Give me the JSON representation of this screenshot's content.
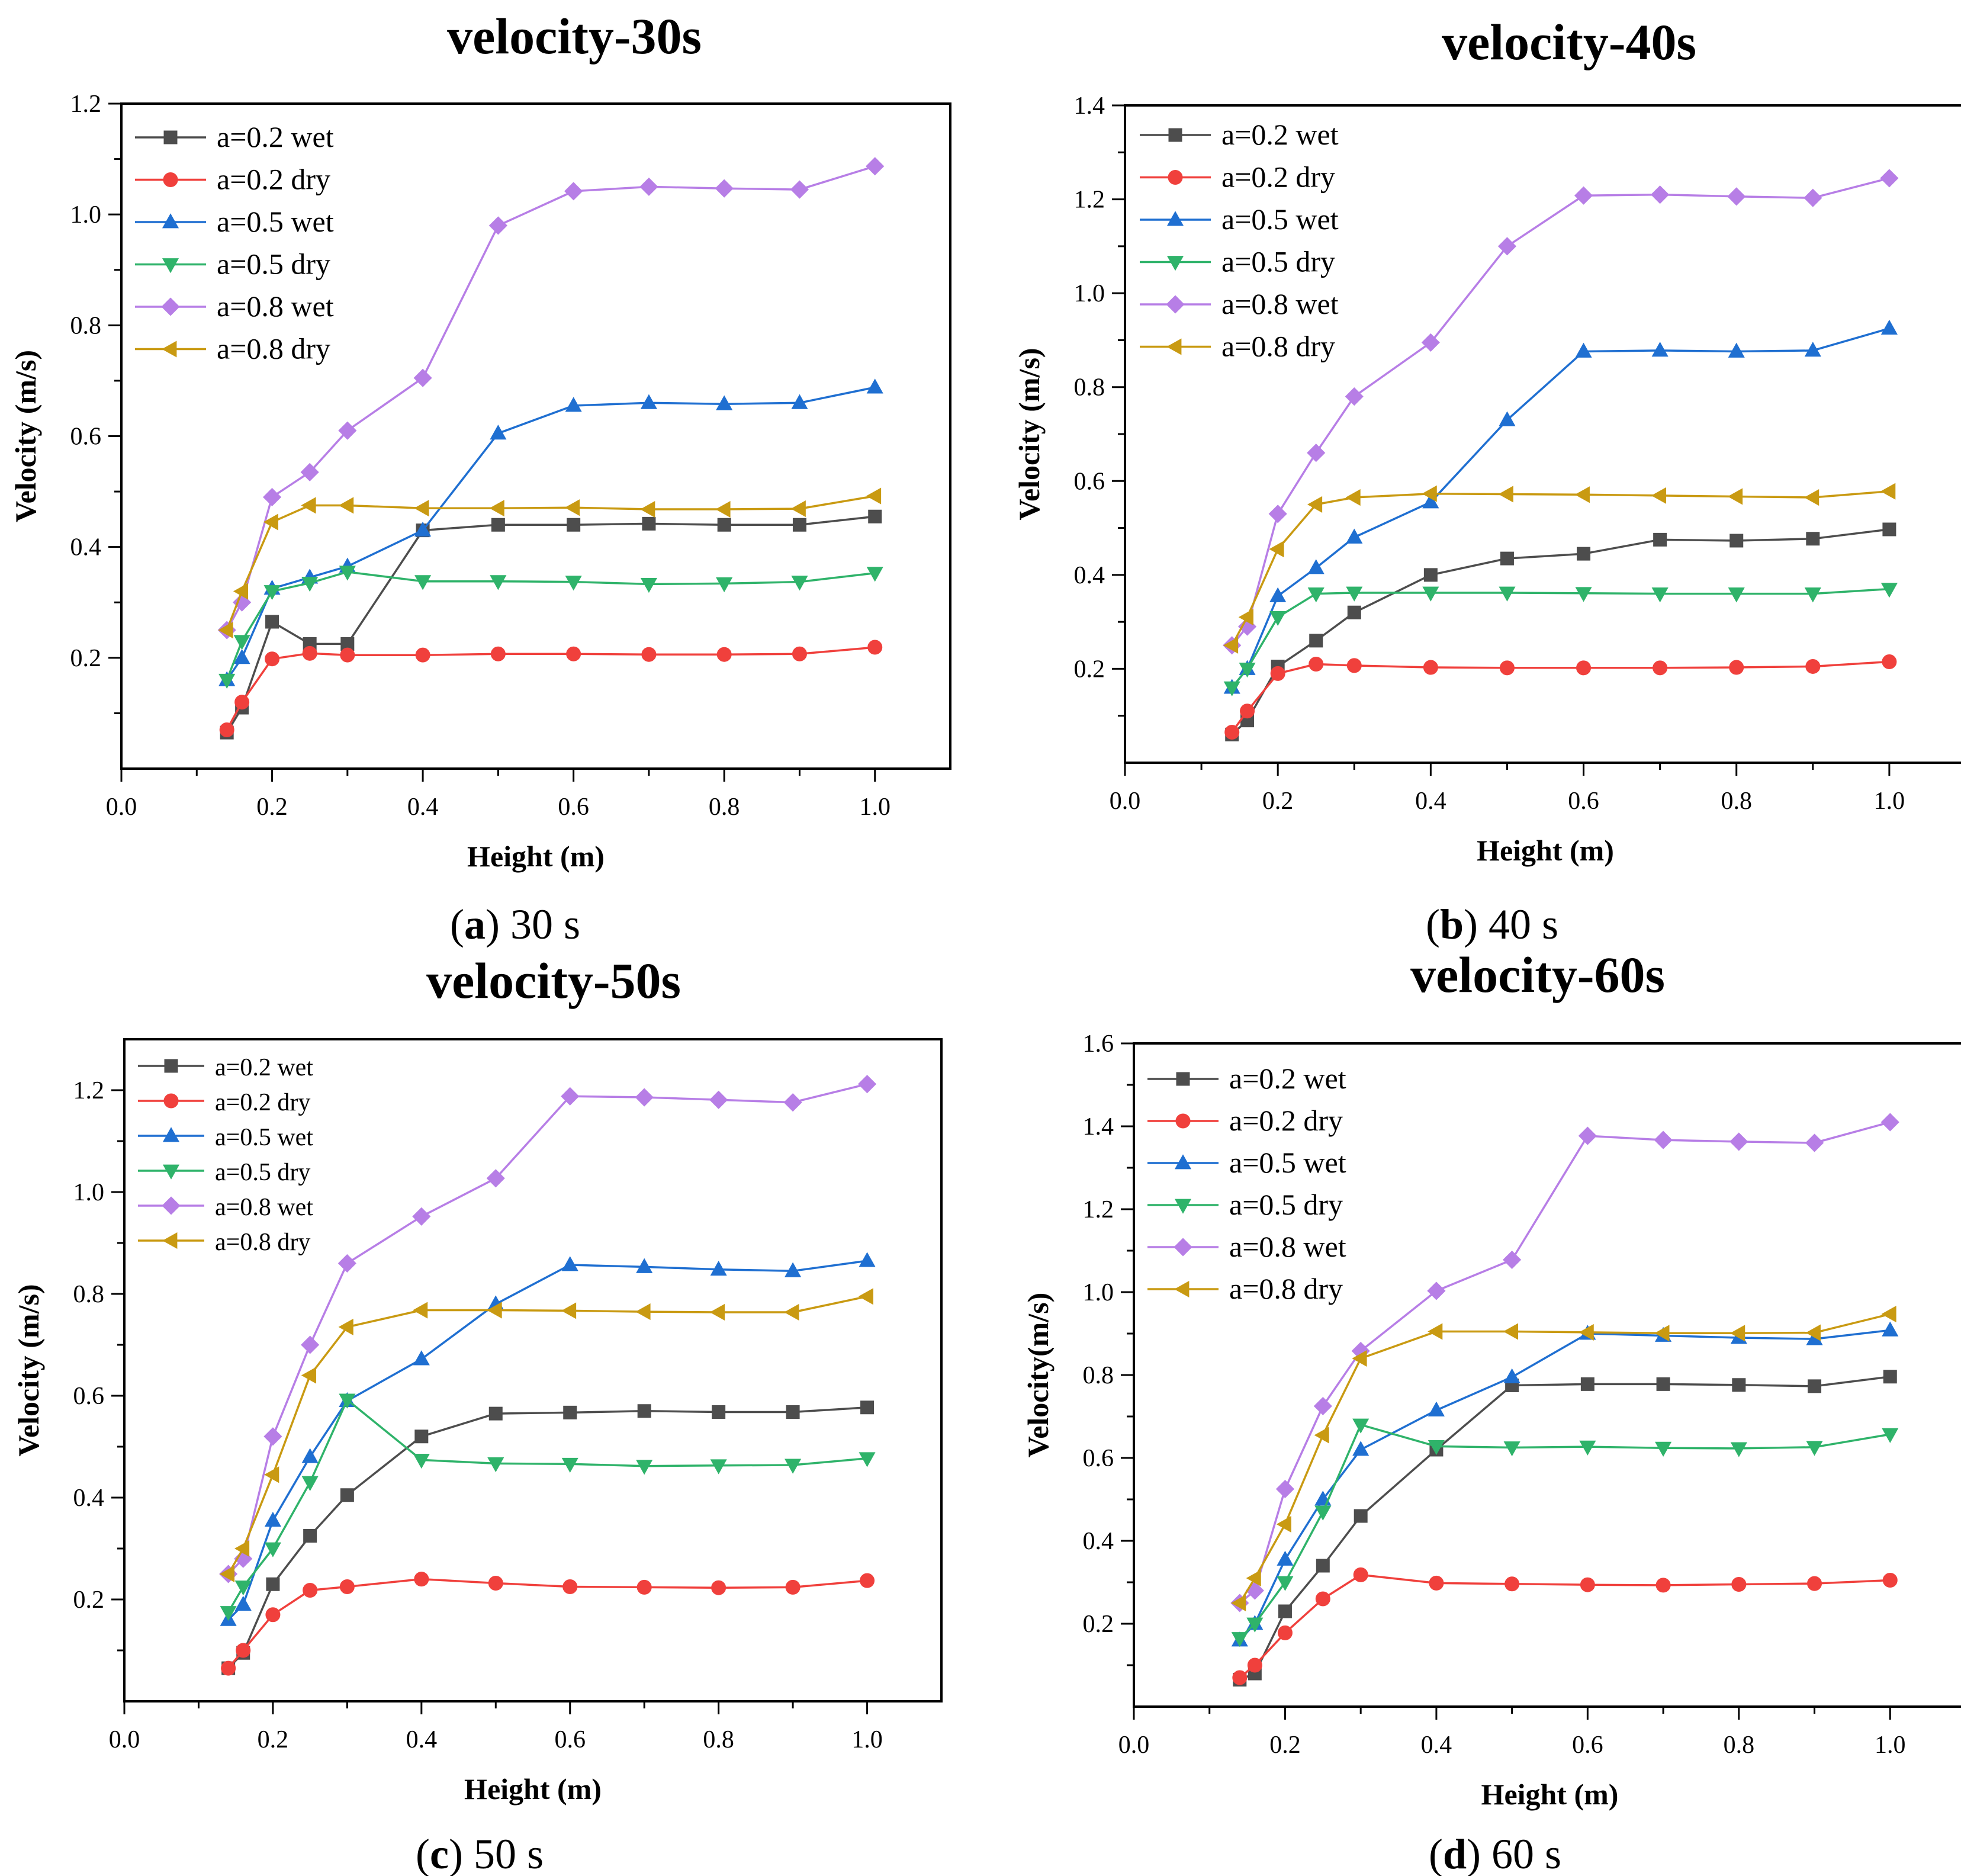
{
  "legend_colors": {
    "a=0.2 wet": "#4d4d4d",
    "a=0.2 dry": "#f0403c",
    "a=0.5 wet": "#1f6fd1",
    "a=0.5 dry": "#2fb36a",
    "a=0.8 wet": "#b77ee6",
    "a=0.8 dry": "#c99a12"
  },
  "chart_data": [
    {
      "type": "line",
      "title": "velocity-30s",
      "xlabel": "Height (m)",
      "ylabel": "Velocity (m/s)",
      "caption_letter": "a",
      "caption_text": "30 s",
      "xlim": [
        0,
        1.1
      ],
      "ylim": [
        0,
        1.2
      ],
      "x_ticks": [
        "0.0",
        "0.2",
        "0.4",
        "0.6",
        "0.8",
        "1.0"
      ],
      "y_ticks": [
        "0.2",
        "0.4",
        "0.6",
        "0.8",
        "1.0",
        "1.2"
      ],
      "x": [
        0.14,
        0.16,
        0.2,
        0.25,
        0.3,
        0.4,
        0.5,
        0.6,
        0.7,
        0.8,
        0.9,
        1.0
      ],
      "series": [
        {
          "name": "a=0.2 wet",
          "marker": "square",
          "values": [
            0.065,
            0.11,
            0.265,
            0.225,
            0.225,
            0.43,
            0.44,
            0.44,
            0.442,
            0.44,
            0.44,
            0.455
          ]
        },
        {
          "name": "a=0.2 dry",
          "marker": "circle",
          "values": [
            0.07,
            0.12,
            0.198,
            0.208,
            0.205,
            0.205,
            0.207,
            0.207,
            0.206,
            0.206,
            0.207,
            0.219
          ]
        },
        {
          "name": "a=0.5 wet",
          "marker": "triangle-up",
          "values": [
            0.16,
            0.2,
            0.325,
            0.345,
            0.365,
            0.43,
            0.605,
            0.655,
            0.66,
            0.658,
            0.66,
            0.688
          ]
        },
        {
          "name": "a=0.5 dry",
          "marker": "triangle-down",
          "values": [
            0.16,
            0.23,
            0.32,
            0.335,
            0.355,
            0.338,
            0.338,
            0.337,
            0.333,
            0.334,
            0.337,
            0.353
          ]
        },
        {
          "name": "a=0.8 wet",
          "marker": "diamond",
          "values": [
            0.25,
            0.3,
            0.49,
            0.535,
            0.61,
            0.705,
            0.98,
            1.042,
            1.05,
            1.047,
            1.045,
            1.087
          ]
        },
        {
          "name": "a=0.8 dry",
          "marker": "triangle-left",
          "values": [
            0.25,
            0.32,
            0.445,
            0.475,
            0.475,
            0.47,
            0.47,
            0.471,
            0.468,
            0.468,
            0.469,
            0.492
          ]
        }
      ]
    },
    {
      "type": "line",
      "title": "velocity-40s",
      "xlabel": "Height (m)",
      "ylabel": "Velocity (m/s)",
      "caption_letter": "b",
      "caption_text": "40 s",
      "xlim": [
        0,
        1.1
      ],
      "ylim": [
        0,
        1.4
      ],
      "x_ticks": [
        "0.0",
        "0.2",
        "0.4",
        "0.6",
        "0.8",
        "1.0"
      ],
      "y_ticks": [
        "0.2",
        "0.4",
        "0.6",
        "0.8",
        "1.0",
        "1.2",
        "1.4"
      ],
      "x": [
        0.14,
        0.16,
        0.2,
        0.25,
        0.3,
        0.4,
        0.5,
        0.6,
        0.7,
        0.8,
        0.9,
        1.0
      ],
      "series": [
        {
          "name": "a=0.2 wet",
          "marker": "square",
          "values": [
            0.06,
            0.09,
            0.205,
            0.26,
            0.32,
            0.4,
            0.435,
            0.445,
            0.475,
            0.473,
            0.477,
            0.497
          ]
        },
        {
          "name": "a=0.2 dry",
          "marker": "circle",
          "values": [
            0.065,
            0.11,
            0.19,
            0.21,
            0.207,
            0.203,
            0.202,
            0.202,
            0.202,
            0.203,
            0.205,
            0.215
          ]
        },
        {
          "name": "a=0.5 wet",
          "marker": "triangle-up",
          "values": [
            0.16,
            0.2,
            0.355,
            0.415,
            0.48,
            0.555,
            0.73,
            0.876,
            0.878,
            0.876,
            0.878,
            0.925
          ]
        },
        {
          "name": "a=0.5 dry",
          "marker": "triangle-down",
          "values": [
            0.16,
            0.2,
            0.31,
            0.36,
            0.362,
            0.362,
            0.362,
            0.361,
            0.36,
            0.36,
            0.36,
            0.37
          ]
        },
        {
          "name": "a=0.8 wet",
          "marker": "diamond",
          "values": [
            0.25,
            0.29,
            0.53,
            0.66,
            0.78,
            0.895,
            1.1,
            1.208,
            1.21,
            1.206,
            1.203,
            1.245
          ]
        },
        {
          "name": "a=0.8 dry",
          "marker": "triangle-left",
          "values": [
            0.25,
            0.31,
            0.455,
            0.55,
            0.565,
            0.573,
            0.572,
            0.571,
            0.569,
            0.567,
            0.565,
            0.578
          ]
        }
      ]
    },
    {
      "type": "line",
      "title": "velocity-50s",
      "xlabel": "Height (m)",
      "ylabel": "Velocity (m/s)",
      "caption_letter": "c",
      "caption_text": "50 s",
      "xlim": [
        0,
        1.1
      ],
      "ylim": [
        0,
        1.3
      ],
      "x_ticks": [
        "0.0",
        "0.2",
        "0.4",
        "0.6",
        "0.8",
        "1.0"
      ],
      "y_ticks": [
        "0.2",
        "0.4",
        "0.6",
        "0.8",
        "1.0",
        "1.2"
      ],
      "x": [
        0.14,
        0.16,
        0.2,
        0.25,
        0.3,
        0.4,
        0.5,
        0.6,
        0.7,
        0.8,
        0.9,
        1.0
      ],
      "series": [
        {
          "name": "a=0.2 wet",
          "marker": "square",
          "values": [
            0.065,
            0.095,
            0.23,
            0.325,
            0.405,
            0.52,
            0.565,
            0.567,
            0.57,
            0.568,
            0.568,
            0.577
          ]
        },
        {
          "name": "a=0.2 dry",
          "marker": "circle",
          "values": [
            0.065,
            0.1,
            0.17,
            0.218,
            0.225,
            0.24,
            0.232,
            0.225,
            0.224,
            0.223,
            0.224,
            0.237
          ]
        },
        {
          "name": "a=0.5 wet",
          "marker": "triangle-up",
          "values": [
            0.16,
            0.19,
            0.355,
            0.48,
            0.59,
            0.672,
            0.78,
            0.857,
            0.853,
            0.848,
            0.845,
            0.865
          ]
        },
        {
          "name": "a=0.5 dry",
          "marker": "triangle-down",
          "values": [
            0.175,
            0.225,
            0.3,
            0.43,
            0.592,
            0.474,
            0.467,
            0.466,
            0.462,
            0.463,
            0.464,
            0.477
          ]
        },
        {
          "name": "a=0.8 wet",
          "marker": "diamond",
          "values": [
            0.25,
            0.28,
            0.52,
            0.7,
            0.86,
            0.952,
            1.027,
            1.188,
            1.186,
            1.181,
            1.176,
            1.212
          ]
        },
        {
          "name": "a=0.8 dry",
          "marker": "triangle-left",
          "values": [
            0.25,
            0.3,
            0.445,
            0.64,
            0.735,
            0.768,
            0.768,
            0.767,
            0.765,
            0.764,
            0.764,
            0.795
          ]
        }
      ]
    },
    {
      "type": "line",
      "title": "velocity-60s",
      "xlabel": "Height (m)",
      "ylabel": "Velocity(m/s)",
      "caption_letter": "d",
      "caption_text": "60 s",
      "xlim": [
        0,
        1.1
      ],
      "ylim": [
        0,
        1.6
      ],
      "x_ticks": [
        "0.0",
        "0.2",
        "0.4",
        "0.6",
        "0.8",
        "1.0"
      ],
      "y_ticks": [
        "0.2",
        "0.4",
        "0.6",
        "0.8",
        "1.0",
        "1.2",
        "1.4",
        "1.6"
      ],
      "x": [
        0.14,
        0.16,
        0.2,
        0.25,
        0.3,
        0.4,
        0.5,
        0.6,
        0.7,
        0.8,
        0.9,
        1.0
      ],
      "series": [
        {
          "name": "a=0.2 wet",
          "marker": "square",
          "values": [
            0.065,
            0.08,
            0.23,
            0.34,
            0.46,
            0.62,
            0.775,
            0.778,
            0.778,
            0.776,
            0.773,
            0.796
          ]
        },
        {
          "name": "a=0.2 dry",
          "marker": "circle",
          "values": [
            0.07,
            0.1,
            0.178,
            0.26,
            0.318,
            0.298,
            0.296,
            0.294,
            0.293,
            0.295,
            0.297,
            0.305
          ]
        },
        {
          "name": "a=0.5 wet",
          "marker": "triangle-up",
          "values": [
            0.16,
            0.2,
            0.355,
            0.5,
            0.62,
            0.715,
            0.795,
            0.9,
            0.895,
            0.89,
            0.887,
            0.908
          ]
        },
        {
          "name": "a=0.5 dry",
          "marker": "triangle-down",
          "values": [
            0.165,
            0.2,
            0.3,
            0.47,
            0.68,
            0.628,
            0.625,
            0.627,
            0.624,
            0.623,
            0.626,
            0.657
          ]
        },
        {
          "name": "a=0.8 wet",
          "marker": "diamond",
          "values": [
            0.25,
            0.28,
            0.525,
            0.725,
            0.858,
            1.003,
            1.078,
            1.377,
            1.367,
            1.363,
            1.36,
            1.41
          ]
        },
        {
          "name": "a=0.8 dry",
          "marker": "triangle-left",
          "values": [
            0.25,
            0.31,
            0.44,
            0.655,
            0.84,
            0.905,
            0.905,
            0.903,
            0.901,
            0.901,
            0.902,
            0.947
          ]
        }
      ]
    }
  ]
}
